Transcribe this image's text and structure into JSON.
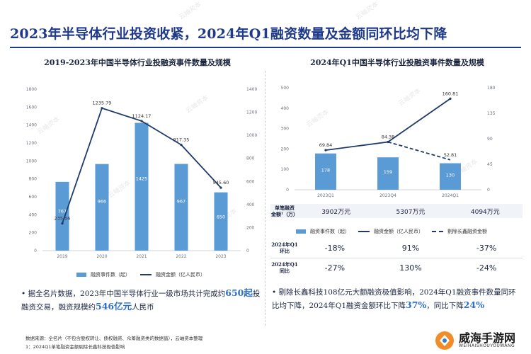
{
  "page": {
    "title": "2023年半导体行业投资收紧，2024年Q1融资数量及金额同环比均下降"
  },
  "left_panel": {
    "title": "2019-2023年中国半导体行业投融资事件数量及规模",
    "legend": {
      "bar": "融资事件数（起）",
      "line": "融资金额（亿人民币）"
    },
    "bullet": {
      "prefix": "据全名片数据，2023年中国半导体行业一级市场共计完成约",
      "hl1": "650起",
      "mid": "投融资交易，融资规模约",
      "hl2": "546亿元",
      "suffix": "人民币"
    }
  },
  "right_panel": {
    "title": "2024年Q1中国半导体行业投融资事件数量及规模",
    "legend": {
      "bar": "融资事件数（起）",
      "line": "融资金额（亿人民币）",
      "dash": "剔除长鑫融资金额"
    },
    "table": {
      "avg_head_1": "单笔融资",
      "avg_head_2": "金额¹（万）",
      "avg_values": [
        "3902万元",
        "5307万元",
        "4094万元"
      ],
      "yoy_head_1": "2024年Q1",
      "yoy_head_2": "环比",
      "yoy_values": [
        "-18%",
        "91%",
        "-37%"
      ],
      "qoq_head_1": "2024年Q1",
      "qoq_head_2": "同比",
      "qoq_values": [
        "-27%",
        "130%",
        "-24%"
      ]
    },
    "bullet": {
      "prefix": "剔除长鑫科技108亿元大额融资极值影响，2024年Q1融资事件数量同环比均下降，2024年Q1融资金额环比下降",
      "hl1": "37%",
      "mid": "，同比下降",
      "hl2": "24%"
    }
  },
  "footer": {
    "line1": "数据来源：全名片（不包含股权转让、债权融资、众筹融资类的数据值），云岫资本整理",
    "line2": "1：2024Q1单笔融资金额剔除长鑫科技极值影响"
  },
  "watermark": "云岫资本",
  "logo": {
    "cn": "威海手游网",
    "en": "WEIHAISHOUYOUWANG"
  },
  "colors": {
    "accent": "#1f3a8a",
    "bar": "#5b9bd5",
    "line": "#1f3a6b",
    "highlight": "#2e6fc7"
  },
  "chart_data": [
    {
      "type": "bar",
      "title": "2019-2023年中国半导体行业投融资事件数量及规模",
      "categories": [
        "2019",
        "2020",
        "2021",
        "2022",
        "2023"
      ],
      "series": [
        {
          "name": "融资事件数（起）",
          "kind": "bar",
          "axis": "left",
          "values": [
            767,
            966,
            1425,
            967,
            650
          ]
        },
        {
          "name": "融资金额（亿人民币）",
          "kind": "line",
          "axis": "right",
          "values": [
            235.56,
            1235.79,
            1124.17,
            917.35,
            545.6
          ]
        }
      ],
      "left_axis": {
        "min": 0,
        "max": 1800,
        "ticks": [
          0,
          200,
          400,
          600,
          800,
          1000,
          1200,
          1400,
          1600,
          1800
        ]
      },
      "right_axis": {
        "min": 0,
        "max": 1400,
        "ticks": [
          0,
          200,
          400,
          600,
          800,
          1000,
          1200,
          1400
        ]
      },
      "bar_labels": [
        "767",
        "966",
        "1425",
        "967",
        "650"
      ],
      "line_labels": [
        "235.56",
        "1235.79",
        "1124.17",
        "917.35",
        "545.60"
      ],
      "grid": false,
      "legend": "bottom"
    },
    {
      "type": "bar",
      "title": "2024年Q1中国半导体行业投融资事件数量及规模",
      "categories": [
        "2023Q1",
        "2023Q4",
        "2024Q1"
      ],
      "series": [
        {
          "name": "融资事件数（起）",
          "kind": "bar",
          "axis": "left",
          "values": [
            178,
            159,
            130
          ]
        },
        {
          "name": "融资金额（亿人民币）",
          "kind": "line",
          "axis": "right",
          "values": [
            69.84,
            84.38,
            160.81
          ]
        },
        {
          "name": "剔除长鑫融资金额",
          "kind": "dashed",
          "axis": "right",
          "values": [
            null,
            84.38,
            52.81
          ]
        }
      ],
      "left_axis": {
        "min": 0,
        "max": 500,
        "ticks": [
          0,
          100,
          200,
          300,
          400,
          500
        ]
      },
      "right_axis": {
        "min": 0,
        "max": 180,
        "ticks": [
          0,
          45,
          90,
          135,
          180
        ]
      },
      "bar_labels": [
        "178",
        "159",
        "130"
      ],
      "line_labels": [
        "69.84",
        "84.38",
        "160.81"
      ],
      "dashed_labels": [
        "",
        "",
        "52.81"
      ],
      "grid": false,
      "legend": "bottom"
    }
  ]
}
